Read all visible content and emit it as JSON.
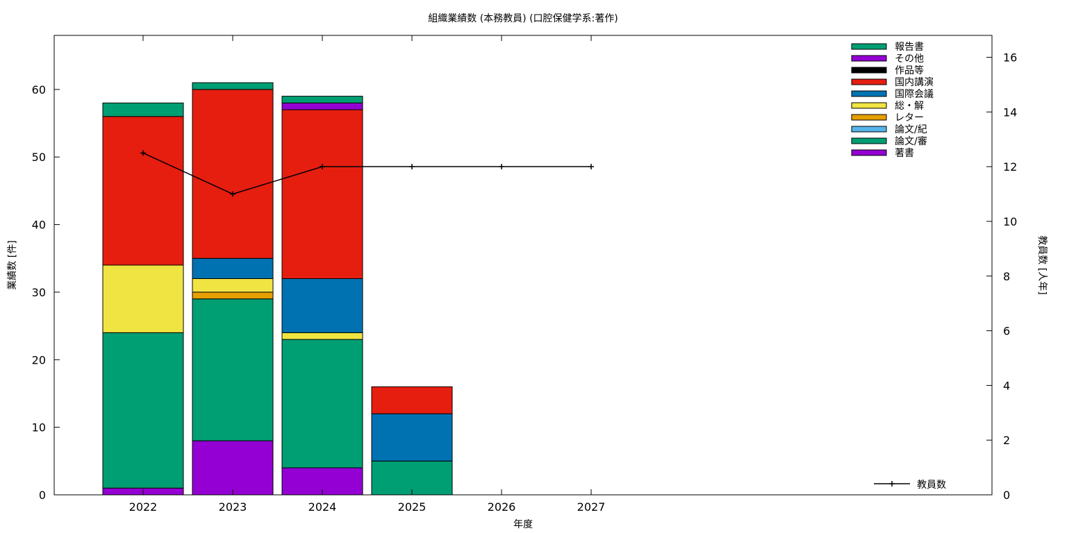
{
  "chart_data": {
    "type": "bar",
    "stacked": true,
    "title": "組織業績数 (本務教員) (口腔保健学系:著作)",
    "xlabel": "年度",
    "ylabel": "業績数 [件]",
    "y2label": "教員数 [人年]",
    "categories": [
      "2022",
      "2023",
      "2024",
      "2025",
      "2026",
      "2027"
    ],
    "ylim": [
      0,
      68
    ],
    "yticks": [
      0,
      10,
      20,
      30,
      40,
      50,
      60
    ],
    "y2lim": [
      0,
      16.8
    ],
    "y2ticks": [
      0,
      2,
      4,
      6,
      8,
      10,
      12,
      14,
      16
    ],
    "grid": false,
    "legend_position": "top-right",
    "series": [
      {
        "name": "著書",
        "color": "#9400d3",
        "values": [
          1,
          8,
          4,
          0,
          0,
          0
        ]
      },
      {
        "name": "論文/審",
        "color": "#009e73",
        "values": [
          23,
          21,
          19,
          5,
          0,
          0
        ]
      },
      {
        "name": "論文/紀",
        "color": "#56b4e9",
        "values": [
          0,
          0,
          0,
          0,
          0,
          0
        ]
      },
      {
        "name": "レター",
        "color": "#e69f00",
        "values": [
          0,
          1,
          0,
          0,
          0,
          0
        ]
      },
      {
        "name": "総・解",
        "color": "#f0e442",
        "values": [
          10,
          2,
          1,
          0,
          0,
          0
        ]
      },
      {
        "name": "国際会議",
        "color": "#0072b2",
        "values": [
          0,
          3,
          8,
          7,
          0,
          0
        ]
      },
      {
        "name": "国内講演",
        "color": "#e51e10",
        "values": [
          22,
          25,
          25,
          4,
          0,
          0
        ]
      },
      {
        "name": "作品等",
        "color": "#000000",
        "values": [
          0,
          0,
          0,
          0,
          0,
          0
        ]
      },
      {
        "name": "その他",
        "color": "#9400d3",
        "values": [
          0,
          0,
          1,
          0,
          0,
          0
        ]
      },
      {
        "name": "報告書",
        "color": "#009e73",
        "values": [
          2,
          1,
          1,
          0,
          0,
          0
        ]
      }
    ],
    "legend_order": [
      "報告書",
      "その他",
      "作品等",
      "国内講演",
      "国際会議",
      "総・解",
      "レター",
      "論文/紀",
      "論文/審",
      "著書"
    ],
    "line_series": {
      "name": "教員数",
      "axis": "y2",
      "color": "#000000",
      "values": [
        12.5,
        11,
        12,
        12,
        12,
        12
      ]
    }
  }
}
